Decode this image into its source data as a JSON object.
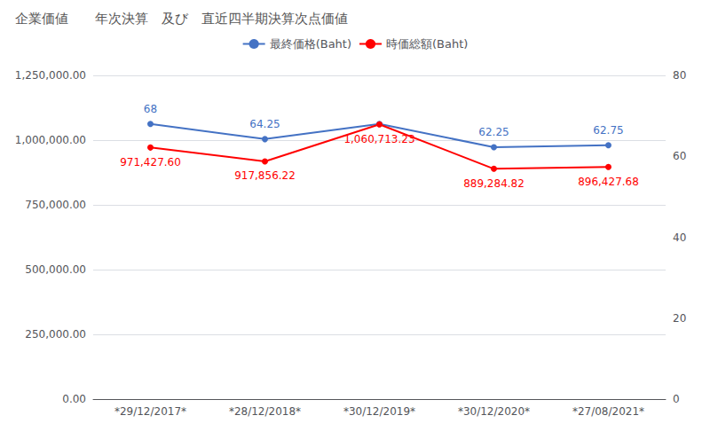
{
  "chart_data": {
    "type": "line",
    "title": "企業価値　　年次決算　及び　直近四半期決算次点価値",
    "categories": [
      "*29/12/2017*",
      "*28/12/2018*",
      "*30/12/2019*",
      "*30/12/2020*",
      "*27/08/2021*"
    ],
    "series": [
      {
        "name": "最終価格(Baht)",
        "color": "#4472c4",
        "axis": "y2",
        "marker": "circle",
        "values": [
          68,
          64.25,
          68,
          62.25,
          62.75
        ],
        "value_labels": [
          "68",
          "64.25",
          null,
          "62.25",
          "62.75"
        ]
      },
      {
        "name": "時価総額(Baht)",
        "color": "#ff0000",
        "axis": "y",
        "marker": "circle",
        "values": [
          971427.6,
          917856.22,
          1060713.23,
          889284.82,
          896427.68
        ],
        "value_labels": [
          "971,427.60",
          "917,856.22",
          "1,060,713.23",
          "889,284.82",
          "896,427.68"
        ]
      }
    ],
    "ylim": [
      0,
      1250000
    ],
    "yticks": [
      {
        "value": 0,
        "label": "0.00"
      },
      {
        "value": 250000,
        "label": "250,000.00"
      },
      {
        "value": 500000,
        "label": "500,000.00"
      },
      {
        "value": 750000,
        "label": "750,000.00"
      },
      {
        "value": 1000000,
        "label": "1,000,000.00"
      },
      {
        "value": 1250000,
        "label": "1,250,000.00"
      }
    ],
    "y2lim": [
      0,
      80
    ],
    "y2ticks": [
      0,
      20,
      40,
      60,
      80
    ],
    "grid": true,
    "legend": "top",
    "data_labels": true
  }
}
